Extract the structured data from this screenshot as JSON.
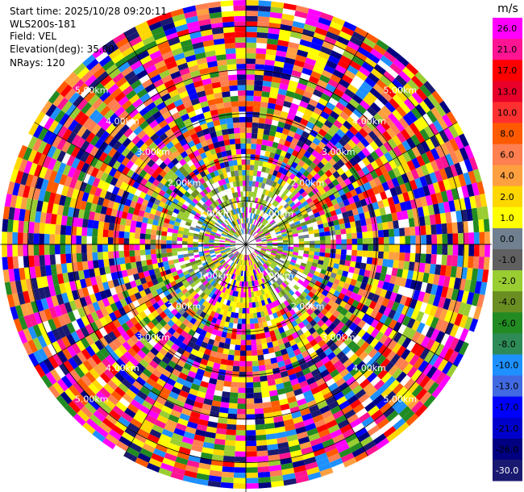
{
  "info": {
    "start_time": "Start time: 2025/10/28 09:20:11",
    "instrument": "WLS200s-181",
    "field": "Field: VEL",
    "elevation": "Elevation(deg): 35.00",
    "nrays": "NRays: 120"
  },
  "chart_data": {
    "type": "heatmap",
    "projection": "polar (PPI)",
    "n_rays": 120,
    "field": "VEL",
    "elevation_deg": 35.0,
    "range_rings_km": [
      "1.00km",
      "2.00km",
      "3.00km",
      "4.00km",
      "5.00km"
    ],
    "range_ring_values_km": [
      1,
      2,
      3,
      4,
      5
    ],
    "max_range_km": 5.6,
    "colorbar": {
      "unit": "m/s",
      "tick_labels": [
        "26.0",
        "21.0",
        "17.0",
        "13.0",
        "10.0",
        "8.0",
        "6.0",
        "4.0",
        "2.0",
        "1.0",
        "0.0",
        "-1.0",
        "-2.0",
        "-4.0",
        "-6.0",
        "-8.0",
        "-10.0",
        "-13.0",
        "-17.0",
        "-21.0",
        "-26.0",
        "-30.0"
      ],
      "colors": [
        "#ff00ff",
        "#ff1493",
        "#ff0000",
        "#e8002a",
        "#ff3030",
        "#ff5a00",
        "#ff7f50",
        "#ffa040",
        "#ffd700",
        "#ffff00",
        "#708090",
        "#606060",
        "#9acd32",
        "#6b8e23",
        "#228b22",
        "#2e8b57",
        "#1e90ff",
        "#4169e1",
        "#0000ff",
        "#0000cd",
        "#000080",
        "#191970"
      ]
    },
    "grid": true,
    "crosshair": true
  }
}
